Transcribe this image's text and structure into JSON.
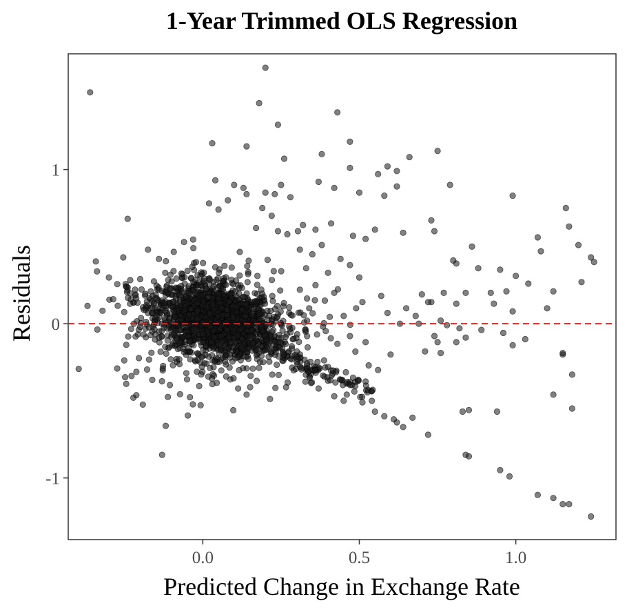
{
  "chart_data": {
    "type": "scatter",
    "title": "1-Year Trimmed OLS Regression",
    "xlabel": "Predicted Change in Exchange Rate",
    "ylabel": "Residuals",
    "xlim": [
      -0.43,
      1.32
    ],
    "ylim": [
      -1.4,
      1.75
    ],
    "x_ticks": [
      {
        "value": 0.0,
        "label": "0.0"
      },
      {
        "value": 0.5,
        "label": "0.5"
      },
      {
        "value": 1.0,
        "label": "1.0"
      }
    ],
    "y_ticks": [
      {
        "value": 1,
        "label": "1"
      },
      {
        "value": 0,
        "label": "0"
      },
      {
        "value": -1,
        "label": "-1"
      }
    ],
    "grid": false,
    "reference_line": {
      "y": 0,
      "color": "#e3201b",
      "style": "dashed"
    },
    "point_color": "#1a1a1a",
    "point_opacity": 0.55,
    "dense_cluster": {
      "description_free": true,
      "center": [
        0.04,
        0.02
      ],
      "spread": [
        0.09,
        0.11
      ],
      "count": 1400,
      "trend_lines": [
        {
          "from": [
            -0.25,
            0.23
          ],
          "to": [
            0.55,
            -0.45
          ],
          "count": 160
        },
        {
          "from": [
            0.05,
            0.25
          ],
          "to": [
            0.35,
            -0.35
          ],
          "count": 80
        }
      ]
    },
    "series": [
      {
        "points": [
          [
            -0.36,
            1.5
          ],
          [
            0.2,
            1.66
          ],
          [
            0.18,
            1.43
          ],
          [
            0.24,
            1.29
          ],
          [
            0.43,
            1.37
          ],
          [
            0.47,
            1.18
          ],
          [
            0.03,
            1.17
          ],
          [
            0.14,
            1.15
          ],
          [
            0.38,
            1.1
          ],
          [
            0.26,
            1.07
          ],
          [
            0.75,
            1.12
          ],
          [
            0.66,
            1.08
          ],
          [
            0.47,
            1.01
          ],
          [
            0.56,
            0.97
          ],
          [
            0.59,
            1.02
          ],
          [
            0.62,
            0.99
          ],
          [
            0.58,
            0.83
          ],
          [
            0.62,
            0.89
          ],
          [
            0.5,
            0.85
          ],
          [
            0.42,
            0.88
          ],
          [
            0.37,
            0.92
          ],
          [
            0.79,
            0.9
          ],
          [
            0.04,
            0.93
          ],
          [
            0.1,
            0.9
          ],
          [
            0.14,
            0.84
          ],
          [
            0.2,
            0.85
          ],
          [
            0.23,
            0.84
          ],
          [
            0.25,
            0.9
          ],
          [
            0.28,
            0.82
          ],
          [
            0.02,
            0.78
          ],
          [
            0.08,
            0.8
          ],
          [
            0.05,
            0.74
          ],
          [
            0.13,
            0.88
          ],
          [
            0.19,
            0.75
          ],
          [
            0.22,
            0.7
          ],
          [
            0.17,
            0.62
          ],
          [
            0.24,
            0.6
          ],
          [
            0.32,
            0.64
          ],
          [
            0.27,
            0.58
          ],
          [
            0.36,
            0.61
          ],
          [
            0.41,
            0.65
          ],
          [
            0.48,
            0.57
          ],
          [
            0.52,
            0.55
          ],
          [
            0.55,
            0.61
          ],
          [
            0.64,
            0.59
          ],
          [
            0.73,
            0.67
          ],
          [
            0.74,
            0.6
          ],
          [
            0.99,
            0.83
          ],
          [
            1.16,
            0.75
          ],
          [
            1.17,
            0.63
          ],
          [
            1.07,
            0.56
          ],
          [
            1.2,
            0.51
          ],
          [
            1.24,
            0.43
          ],
          [
            1.25,
            0.4
          ],
          [
            1.08,
            0.47
          ],
          [
            -0.24,
            0.68
          ],
          [
            -0.3,
            0.3
          ],
          [
            -0.14,
            0.42
          ],
          [
            -0.12,
            0.33
          ],
          [
            -0.06,
            0.53
          ],
          [
            -0.03,
            0.49
          ],
          [
            0.86,
            0.5
          ],
          [
            0.8,
            0.41
          ],
          [
            0.81,
            0.39
          ],
          [
            0.88,
            0.36
          ],
          [
            0.95,
            0.35
          ],
          [
            1.0,
            0.31
          ],
          [
            1.04,
            0.26
          ],
          [
            1.12,
            0.21
          ],
          [
            1.1,
            0.1
          ],
          [
            1.21,
            0.27
          ],
          [
            0.92,
            0.2
          ],
          [
            0.97,
            0.21
          ],
          [
            0.99,
            0.08
          ],
          [
            0.93,
            0.13
          ],
          [
            0.84,
            0.2
          ],
          [
            0.81,
            0.13
          ],
          [
            0.77,
            0.2
          ],
          [
            0.73,
            0.14
          ],
          [
            0.72,
            0.14
          ],
          [
            0.7,
            0.19
          ],
          [
            0.68,
            0.05
          ],
          [
            0.65,
            0.1
          ],
          [
            0.63,
            0.0
          ],
          [
            0.59,
            0.07
          ],
          [
            0.57,
            0.18
          ],
          [
            0.69,
            0.0
          ],
          [
            0.76,
            0.02
          ],
          [
            0.78,
            -0.01
          ],
          [
            0.82,
            -0.03
          ],
          [
            0.84,
            -0.09
          ],
          [
            0.74,
            -0.08
          ],
          [
            0.75,
            -0.12
          ],
          [
            0.71,
            -0.18
          ],
          [
            0.76,
            -0.19
          ],
          [
            0.81,
            -0.12
          ],
          [
            0.89,
            -0.04
          ],
          [
            0.96,
            -0.06
          ],
          [
            1.03,
            -0.1
          ],
          [
            0.99,
            -0.14
          ],
          [
            1.15,
            -0.2
          ],
          [
            1.15,
            -0.19
          ],
          [
            1.18,
            -0.33
          ],
          [
            1.18,
            -0.55
          ],
          [
            1.12,
            -0.46
          ],
          [
            0.94,
            -0.57
          ],
          [
            0.83,
            -0.57
          ],
          [
            0.85,
            -0.56
          ],
          [
            0.84,
            -0.85
          ],
          [
            0.85,
            -0.86
          ],
          [
            0.72,
            -0.72
          ],
          [
            0.67,
            -0.61
          ],
          [
            0.64,
            -0.67
          ],
          [
            0.62,
            -0.64
          ],
          [
            0.61,
            -0.62
          ],
          [
            0.58,
            -0.6
          ],
          [
            0.55,
            -0.57
          ],
          [
            0.54,
            -0.5
          ],
          [
            0.51,
            -0.51
          ],
          [
            0.46,
            -0.46
          ],
          [
            0.42,
            -0.47
          ],
          [
            0.95,
            -0.95
          ],
          [
            0.98,
            -0.99
          ],
          [
            1.07,
            -1.11
          ],
          [
            1.12,
            -1.13
          ],
          [
            1.15,
            -1.17
          ],
          [
            1.17,
            -1.17
          ],
          [
            1.24,
            -1.25
          ],
          [
            -0.13,
            -0.85
          ],
          [
            0.14,
            -0.46
          ],
          [
            0.37,
            -0.42
          ],
          [
            0.45,
            -0.5
          ],
          [
            0.4,
            -0.28
          ],
          [
            0.48,
            -0.35
          ],
          [
            0.53,
            -0.27
          ],
          [
            0.56,
            -0.3
          ],
          [
            0.6,
            -0.2
          ],
          [
            0.52,
            -0.12
          ],
          [
            0.47,
            -0.08
          ],
          [
            0.43,
            -0.13
          ],
          [
            0.45,
            0.05
          ],
          [
            0.49,
            0.1
          ],
          [
            0.51,
            0.14
          ],
          [
            0.5,
            0.3
          ],
          [
            0.47,
            0.38
          ],
          [
            0.44,
            0.42
          ],
          [
            0.4,
            0.33
          ],
          [
            0.35,
            0.45
          ],
          [
            0.38,
            0.51
          ],
          [
            0.33,
            0.36
          ],
          [
            0.31,
            0.48
          ],
          [
            0.42,
            0.2
          ],
          [
            0.39,
            0.15
          ],
          [
            0.36,
            0.25
          ],
          [
            0.31,
            0.22
          ],
          [
            0.34,
            0.1
          ],
          [
            -0.2,
            -0.02
          ],
          [
            -0.22,
            0.0
          ],
          [
            -0.18,
            0.12
          ],
          [
            -0.16,
            0.18
          ],
          [
            -0.12,
            -0.15
          ],
          [
            -0.08,
            0.0
          ]
        ]
      }
    ]
  }
}
